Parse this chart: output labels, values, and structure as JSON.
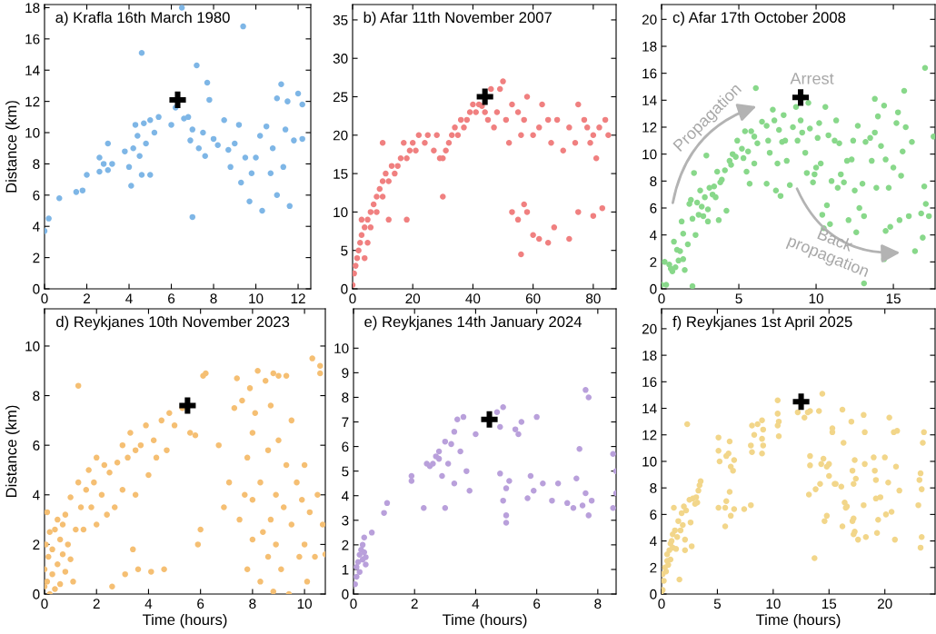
{
  "chart_data": [
    {
      "type": "scatter",
      "title": "a) Krafla 16th March 1980",
      "ylabel": "Distance (km)",
      "xlim": [
        0,
        12.6
      ],
      "xticks": [
        0,
        2,
        4,
        6,
        8,
        10,
        12
      ],
      "ylim": [
        0,
        18.2
      ],
      "yticks": [
        0,
        2,
        4,
        6,
        8,
        10,
        12,
        14,
        16,
        18
      ],
      "series": [
        {
          "color": "#7eb6e6",
          "marker": "circle",
          "x": [
            0,
            0.2,
            0.7,
            1.5,
            1.8,
            2,
            2.6,
            2.6,
            2.8,
            3,
            3,
            3.2,
            3.8,
            4,
            4.1,
            4.2,
            4.3,
            4.4,
            4.5,
            4.6,
            4.6,
            4.7,
            4.8,
            5,
            5,
            5.2,
            5.4,
            6,
            6.2,
            6.6,
            6.8,
            6.9,
            7,
            7,
            7.2,
            7.3,
            7.5,
            7.6,
            7.7,
            7.8,
            8,
            8.2,
            8.5,
            8.7,
            8.8,
            9,
            9.2,
            9.3,
            9.4,
            9.5,
            9.7,
            9.8,
            10,
            10.2,
            10.3,
            10.5,
            10.7,
            10.8,
            11,
            11,
            11.2,
            11.3,
            11.4,
            11.5,
            11.6,
            11.8,
            12,
            12.2,
            12.2,
            6.5
          ],
          "values": [
            3.7,
            4.5,
            5.8,
            6.2,
            6.3,
            7.3,
            7.5,
            8.4,
            8.0,
            7.6,
            9.3,
            8.0,
            8.8,
            7.8,
            6.6,
            9.0,
            10.5,
            9.8,
            8.5,
            7.3,
            15.1,
            10.6,
            9.3,
            10.8,
            7.3,
            10.0,
            11.0,
            10.5,
            11.6,
            10.9,
            11.0,
            9.5,
            4.6,
            10.2,
            14.3,
            9.0,
            10.0,
            8.5,
            13.2,
            12.1,
            9.6,
            9.2,
            10.8,
            8.9,
            7.8,
            9.3,
            10.5,
            6.8,
            16.8,
            8.4,
            5.6,
            7.4,
            8.4,
            9.8,
            5.0,
            10.4,
            7.4,
            9.0,
            6.0,
            12.2,
            13.1,
            7.8,
            10.2,
            12.0,
            5.3,
            9.5,
            12.5,
            11.8,
            9.6,
            18.0
          ]
        },
        {
          "color": "#000000",
          "marker": "cross",
          "x": [
            6.3
          ],
          "values": [
            12.1
          ]
        }
      ]
    },
    {
      "type": "scatter",
      "title": "b) Afar 11th November 2007",
      "xlim": [
        0,
        87.6
      ],
      "xticks": [
        0,
        20,
        40,
        60,
        80
      ],
      "ylim": [
        0,
        37
      ],
      "yticks": [
        0,
        5,
        10,
        15,
        20,
        25,
        30,
        35
      ],
      "series": [
        {
          "color": "#f08080",
          "marker": "circle",
          "x": [
            0,
            0.5,
            1,
            1.5,
            2,
            2.5,
            3,
            3,
            4,
            5,
            6,
            6,
            7,
            8,
            8,
            9,
            10,
            10,
            11,
            12,
            13,
            14,
            15,
            16,
            17,
            18,
            19,
            20,
            21,
            22,
            24,
            25,
            27,
            28,
            29,
            30,
            31,
            32,
            33,
            34,
            35,
            36,
            37,
            38,
            39,
            40,
            41,
            42,
            43,
            44,
            45,
            46,
            47,
            48,
            49,
            50,
            51,
            52,
            53,
            55,
            56,
            57,
            58,
            60,
            62,
            63,
            65,
            66,
            68,
            70,
            72,
            74,
            75,
            77,
            78,
            79,
            80,
            81,
            82,
            84,
            85,
            53,
            55,
            56,
            57,
            58,
            60,
            62,
            65,
            67,
            72,
            75,
            80,
            83,
            30,
            18,
            12,
            10,
            5,
            4
          ],
          "values": [
            0.5,
            2,
            3,
            4,
            5,
            6,
            7,
            9,
            8,
            9,
            10,
            8,
            11,
            10,
            12,
            13,
            12,
            14,
            15,
            14,
            16,
            15,
            16,
            17,
            19,
            17,
            18,
            19,
            18,
            20,
            19,
            20,
            18,
            20,
            17,
            17,
            18,
            19,
            20,
            21,
            20,
            22,
            21,
            22,
            23,
            24,
            23,
            24,
            23.8,
            23,
            22,
            26,
            21,
            23,
            26,
            27,
            22,
            19,
            24,
            23,
            20,
            22,
            25,
            20,
            21,
            24,
            22,
            19,
            22,
            18,
            21,
            19,
            24,
            22,
            21,
            19,
            20,
            17,
            21,
            22,
            20,
            10,
            9,
            4.5,
            11,
            10,
            7,
            6.5,
            6,
            8,
            6.5,
            10,
            9.5,
            10.5,
            12,
            9,
            9,
            19,
            6,
            4
          ]
        },
        {
          "color": "#000000",
          "marker": "cross",
          "x": [
            44
          ],
          "values": [
            25
          ]
        }
      ]
    },
    {
      "type": "scatter",
      "title": "c) Afar 17th October 2008",
      "xlim": [
        0,
        17.7
      ],
      "xticks": [
        0,
        5,
        10,
        15
      ],
      "ylim": [
        0,
        21.1
      ],
      "yticks": [
        0,
        2,
        4,
        6,
        8,
        10,
        12,
        14,
        16,
        18,
        20
      ],
      "annotations": [
        "Arrest",
        "Propagation",
        "Back\npropagation"
      ],
      "series": [
        {
          "color": "#88d88a",
          "marker": "circle",
          "x": [
            0,
            0.2,
            0.3,
            0.5,
            0.6,
            0.7,
            0.8,
            0.9,
            1,
            1.1,
            1.2,
            1.3,
            1.4,
            1.4,
            1.5,
            1.7,
            1.8,
            1.9,
            2,
            2,
            2.1,
            2.2,
            2.3,
            2.4,
            2.5,
            2.6,
            2.7,
            2.8,
            2.9,
            3,
            3,
            3.1,
            3.3,
            3.4,
            3.5,
            3.6,
            3.7,
            3.8,
            3.9,
            4.1,
            4.2,
            4.4,
            4.5,
            4.6,
            4.8,
            4.9,
            5.2,
            5.3,
            5.4,
            5.5,
            5.6,
            5.7,
            5.8,
            6,
            6,
            6.1,
            6.2,
            6.5,
            6.8,
            6.8,
            6.9,
            7,
            7.2,
            7.3,
            7.4,
            7.5,
            7.6,
            7.7,
            7.8,
            7.9,
            8,
            8.1,
            8.3,
            8.5,
            8.7,
            8.8,
            9,
            9.1,
            9.2,
            9.3,
            9.4,
            9.5,
            9.6,
            9.8,
            9.9,
            10,
            10.1,
            10.2,
            10.3,
            10.4,
            10.5,
            10.6,
            10.7,
            10.8,
            10.9,
            11,
            11.2,
            11.3,
            11.4,
            11.5,
            11.6,
            11.8,
            12,
            12.1,
            12.3,
            12.4,
            12.5,
            12.6,
            12.7,
            12.8,
            13,
            13.1,
            13.2,
            13.1,
            13.5,
            13.6,
            13.8,
            13.9,
            14,
            13.8,
            14.2,
            14.4,
            14.5,
            14.7,
            14.8,
            14.4,
            15,
            14.5,
            15.2,
            15.3,
            15.4,
            15.5,
            15.6,
            15.8,
            16,
            16.2,
            15.7,
            16.8,
            17,
            17.1,
            16.9,
            17.3,
            16.4,
            17.6,
            17.05
          ],
          "values": [
            0.3,
            2,
            0.3,
            1.8,
            1.5,
            1.3,
            3.5,
            1.6,
            2.9,
            2.1,
            2.8,
            5,
            4.1,
            2.2,
            1.4,
            3.3,
            6.3,
            6.6,
            0.2,
            5.2,
            8.6,
            4,
            6.4,
            5.5,
            7.3,
            6.1,
            5.4,
            6.8,
            9.9,
            5.9,
            5,
            7.5,
            7,
            7.6,
            6.8,
            8.7,
            5.1,
            7.9,
            8.1,
            8.8,
            5.8,
            9.5,
            9.2,
            10,
            9.8,
            11,
            10.4,
            9.7,
            11.7,
            8.7,
            10.2,
            7.8,
            11.7,
            11.3,
            9.3,
            14.9,
            10.8,
            12.4,
            12.1,
            7.8,
            11,
            10.1,
            13.3,
            12.5,
            7.3,
            9.3,
            11.8,
            6.9,
            10.9,
            12.9,
            11,
            9.5,
            7.7,
            12,
            13.5,
            11,
            12.5,
            11.6,
            14.2,
            10.1,
            8.6,
            13.8,
            11.9,
            7.9,
            8.5,
            9,
            11.2,
            12.3,
            9.3,
            5.5,
            4.5,
            13.5,
            6.2,
            11.4,
            4.8,
            8,
            11,
            12.5,
            7.5,
            10.8,
            8.5,
            7.9,
            9.5,
            5.1,
            9.6,
            11,
            7.3,
            4.2,
            12.1,
            6,
            7.8,
            5.4,
            10.9,
            0.4,
            11.2,
            9.5,
            11.6,
            7.5,
            12.8,
            14.1,
            10.6,
            13.6,
            9.6,
            7.5,
            4.6,
            2.2,
            9,
            4.3,
            12.3,
            13.1,
            5.1,
            8.4,
            10.2,
            12,
            5.4,
            10.9,
            14.7,
            5.6,
            7.6,
            6.3,
            3.8,
            5.4,
            2.8,
            11.3,
            16.4
          ]
        },
        {
          "color": "#000000",
          "marker": "cross",
          "x": [
            9
          ],
          "values": [
            14.2
          ]
        }
      ]
    },
    {
      "type": "scatter",
      "title": "d) Reykjanes 10th November 2023",
      "xlabel": "Time (hours)",
      "ylabel": "Distance (km)",
      "xlim": [
        0,
        10.8
      ],
      "xticks": [
        0,
        2,
        4,
        6,
        8,
        10
      ],
      "ylim": [
        0,
        11.5
      ],
      "yticks": [
        0,
        2,
        4,
        6,
        8,
        10
      ],
      "series": [
        {
          "color": "#f5bf73",
          "marker": "circle",
          "x": [
            0,
            0,
            0.05,
            0.1,
            0.1,
            0.15,
            0.2,
            0.2,
            0.3,
            0.3,
            0.4,
            0.4,
            0.5,
            0.5,
            0.6,
            0.6,
            0.7,
            0.7,
            0.8,
            0.8,
            0.9,
            1,
            1,
            1.1,
            1.2,
            1.3,
            1.3,
            1.4,
            1.5,
            1.6,
            1.7,
            1.8,
            1.9,
            2,
            2,
            2.2,
            2.3,
            2.4,
            2.5,
            2.6,
            2.7,
            2.8,
            3,
            3,
            3.1,
            3.2,
            3.3,
            3.4,
            3.5,
            3.5,
            3.6,
            3.7,
            3.9,
            4,
            4.1,
            4.2,
            4.3,
            4.5,
            4.6,
            4.7,
            4.8,
            5,
            5.3,
            5.6,
            5.8,
            6.1,
            6.2,
            5.9,
            6,
            6.7,
            6.9,
            7.1,
            7.3,
            7.4,
            7.5,
            7.6,
            7.7,
            7.8,
            7.8,
            7.9,
            8,
            8,
            8,
            8.1,
            8.2,
            8.3,
            8.3,
            8.4,
            8.5,
            8.6,
            8.6,
            8.7,
            8.7,
            8.8,
            8.8,
            8.9,
            8.9,
            9,
            9,
            9.1,
            9.2,
            9.3,
            9.3,
            9.4,
            9.5,
            9.5,
            9.7,
            9.8,
            9.9,
            10,
            10,
            10.1,
            10.2,
            10.3,
            10.4,
            10.5,
            10.6,
            10.6,
            10.7,
            10.8
          ],
          "values": [
            0.3,
            1,
            2,
            3.3,
            0.5,
            1.5,
            2.5,
            0,
            0.8,
            1.8,
            2.6,
            0.2,
            1.2,
            3,
            2.2,
            0.4,
            1.6,
            2.8,
            0.9,
            3.2,
            2,
            1.4,
            3.9,
            0.5,
            2.6,
            4.5,
            8.4,
            3.5,
            2.6,
            4.2,
            5,
            3.5,
            4.5,
            2.8,
            5.5,
            4,
            5.2,
            3.2,
            4.9,
            0.3,
            3.5,
            5.3,
            6,
            4.2,
            0.8,
            5.5,
            6.5,
            1.8,
            5.8,
            4,
            1,
            6,
            6.8,
            4.8,
            0.9,
            6.2,
            5.5,
            7,
            1,
            5.8,
            7.3,
            6.8,
            7.5,
            6.5,
            6.4,
            8.8,
            8.9,
            2,
            2.6,
            6,
            3.5,
            4.5,
            7.5,
            8.7,
            3,
            7.8,
            4,
            1,
            5.5,
            8.3,
            2.2,
            3.8,
            6.5,
            7.3,
            9,
            0.5,
            4.5,
            2.5,
            8.6,
            1.5,
            5.8,
            3,
            7.6,
            0.1,
            8.9,
            4,
            2,
            6.2,
            8.8,
            1,
            3.5,
            5.2,
            8.8,
            0,
            2.8,
            7,
            4.5,
            1.5,
            3.8,
            2,
            5.2,
            0.5,
            3.3,
            9.5,
            1.5,
            4,
            9.2,
            8.9,
            2.8,
            1.6
          ]
        },
        {
          "color": "#000000",
          "marker": "cross",
          "x": [
            5.5
          ],
          "values": [
            7.6
          ]
        }
      ]
    },
    {
      "type": "scatter",
      "title": "e) Reykjanes 14th January 2024",
      "xlabel": "Time (hours)",
      "xlim": [
        0,
        8.6
      ],
      "xticks": [
        0,
        2,
        4,
        6,
        8
      ],
      "ylim": [
        0,
        11.6
      ],
      "yticks": [
        0,
        1,
        2,
        3,
        4,
        5,
        6,
        7,
        8,
        9,
        10
      ],
      "series": [
        {
          "color": "#b9a0db",
          "marker": "circle",
          "x": [
            0.05,
            0.1,
            0.1,
            0.15,
            0.2,
            0.2,
            0.25,
            0.3,
            0.3,
            0.35,
            0.35,
            0.4,
            0.4,
            0.6,
            1,
            1.1,
            1.9,
            1.9,
            2.3,
            2.4,
            2.5,
            2.6,
            2.7,
            2.8,
            2.8,
            2.9,
            3,
            3,
            3.1,
            3.2,
            3.3,
            3.3,
            3.4,
            3.5,
            3.6,
            3.7,
            3.8,
            4,
            4.7,
            4.8,
            4.8,
            4.9,
            4.9,
            5,
            5,
            5,
            5.1,
            5.3,
            5.4,
            5.5,
            5.7,
            5.8,
            5.9,
            6,
            6.2,
            6.5,
            6.7,
            7,
            7.2,
            7.3,
            7.4,
            7.5,
            7.6,
            7.6,
            7.7,
            7.7,
            7.8,
            8.5,
            8.5,
            8.6,
            8.6
          ],
          "values": [
            0.4,
            0.7,
            1.1,
            1.3,
            1.6,
            0.9,
            1.8,
            2,
            1.4,
            1.7,
            2.3,
            1.5,
            1.2,
            2.5,
            3.3,
            3.7,
            4.6,
            4.8,
            3.5,
            5.3,
            5.2,
            5.3,
            5.6,
            5.8,
            5.5,
            4.8,
            6.2,
            3.5,
            5.3,
            6.1,
            4.5,
            6.6,
            7.1,
            5.8,
            7.2,
            5,
            4.2,
            6.5,
            7.4,
            6.8,
            4.9,
            3.8,
            7.6,
            3.2,
            2.9,
            4.3,
            4.6,
            6.7,
            6.5,
            7,
            3.9,
            4.8,
            4.2,
            7.2,
            4.5,
            3.8,
            4.5,
            3.7,
            3.5,
            4.7,
            5.9,
            3.6,
            4.1,
            8.3,
            3.2,
            8,
            3.8,
            3.5,
            5.7,
            4.1,
            5
          ]
        },
        {
          "color": "#000000",
          "marker": "cross",
          "x": [
            4.45
          ],
          "values": [
            7.1
          ]
        }
      ]
    },
    {
      "type": "scatter",
      "title": "f) Reykjanes 1st April 2025",
      "xlabel": "Time (hours)",
      "xlim": [
        0,
        24.5
      ],
      "xticks": [
        0,
        5,
        10,
        15,
        20
      ],
      "ylim": [
        0,
        21.5
      ],
      "yticks": [
        0,
        2,
        4,
        6,
        8,
        10,
        12,
        14,
        16,
        18,
        20
      ],
      "series": [
        {
          "color": "#f2d68a",
          "marker": "circle",
          "x": [
            0,
            0.1,
            0.1,
            0.2,
            0.3,
            0.4,
            0.5,
            0.5,
            0.6,
            0.7,
            0.8,
            0.8,
            0.9,
            1,
            1,
            1.1,
            1.2,
            1.3,
            1.4,
            1.5,
            1.6,
            1.7,
            1.8,
            1.9,
            2,
            2.1,
            2.1,
            2.2,
            2.3,
            2.5,
            2.6,
            2.7,
            2.8,
            3,
            3.1,
            3.2,
            3.3,
            3.4,
            3.5,
            5.1,
            5.1,
            5.2,
            5.1,
            5.7,
            5.7,
            5.8,
            5.8,
            6,
            6.1,
            6.2,
            6.1,
            6.2,
            6.4,
            6.5,
            6.5,
            7.4,
            8,
            8,
            8.1,
            8.1,
            8.3,
            8.6,
            9,
            9,
            9,
            9.1,
            9.1,
            10.4,
            10.4,
            10.4,
            10.5,
            10.5,
            12.2,
            12.8,
            13.1,
            13.3,
            13.3,
            13.3,
            13.2,
            13.7,
            13.8,
            14.1,
            14.3,
            14.5,
            14.2,
            14.4,
            14.6,
            14.8,
            14.8,
            15,
            15,
            15.3,
            15.3,
            15.5,
            15.6,
            16.1,
            16.2,
            16.3,
            16.4,
            16.5,
            16.2,
            16.6,
            17,
            17.1,
            17.2,
            17.3,
            17.2,
            17.4,
            17.2,
            17.1,
            17.3,
            17.6,
            18.1,
            18.2,
            18.2,
            18.1,
            18.3,
            19,
            19.1,
            19.2,
            19.3,
            19.2,
            19.4,
            19.6,
            20,
            20.1,
            20.3,
            20.4,
            20.6,
            20.8,
            20.9,
            21,
            21.1,
            21.3,
            23,
            23.1,
            23.2,
            23.3,
            23.3,
            23.2,
            23.4,
            23.5
          ],
          "values": [
            0.2,
            0.3,
            1.5,
            1,
            2,
            1.7,
            2.5,
            3,
            2.2,
            3.3,
            2.6,
            3.8,
            4,
            3.5,
            4.5,
            6.5,
            4.8,
            3.4,
            4.3,
            5.5,
            1.1,
            4.8,
            6.1,
            5.2,
            6.6,
            4.1,
            3.3,
            6.3,
            12.8,
            7.1,
            5.4,
            3.6,
            7.2,
            6.8,
            7.3,
            6.9,
            7.8,
            8.2,
            8.5,
            11.8,
            10.8,
            10,
            6.5,
            6.5,
            5.1,
            10.4,
            7,
            10.6,
            11.5,
            9.6,
            7.7,
            5.9,
            9.3,
            10.1,
            6.4,
            6.4,
            6.7,
            11.2,
            12.7,
            10.7,
            12,
            12.8,
            13.1,
            11.7,
            10.6,
            12.4,
            11.2,
            14.6,
            13.6,
            12.7,
            11.9,
            13,
            13.7,
            13.3,
            13.7,
            13.8,
            9.7,
            10.4,
            7.5,
            2.7,
            7.9,
            13.8,
            9.8,
            10.2,
            8.3,
            15.1,
            5.5,
            9.6,
            5.9,
            9.8,
            8.9,
            12.2,
            12.5,
            8.3,
            8.3,
            8.1,
            13.9,
            11.4,
            6.9,
            6.5,
            5.1,
            6.6,
            13,
            9.3,
            8.3,
            4.7,
            5.7,
            8.7,
            4.5,
            5.5,
            10.1,
            4.1,
            13.5,
            12.2,
            9.8,
            6.7,
            4.3,
            10.3,
            9.3,
            7.2,
            4.6,
            8.6,
            5.6,
            7.3,
            10.3,
            6,
            8.4,
            13.3,
            6.2,
            12.2,
            4.1,
            9.6,
            12.3,
            7.8,
            6.7,
            8.6,
            9.1,
            7.9,
            4.3,
            3.5,
            11.4,
            12.2
          ]
        },
        {
          "color": "#000000",
          "marker": "cross",
          "x": [
            12.5
          ],
          "values": [
            14.5
          ]
        }
      ]
    }
  ]
}
